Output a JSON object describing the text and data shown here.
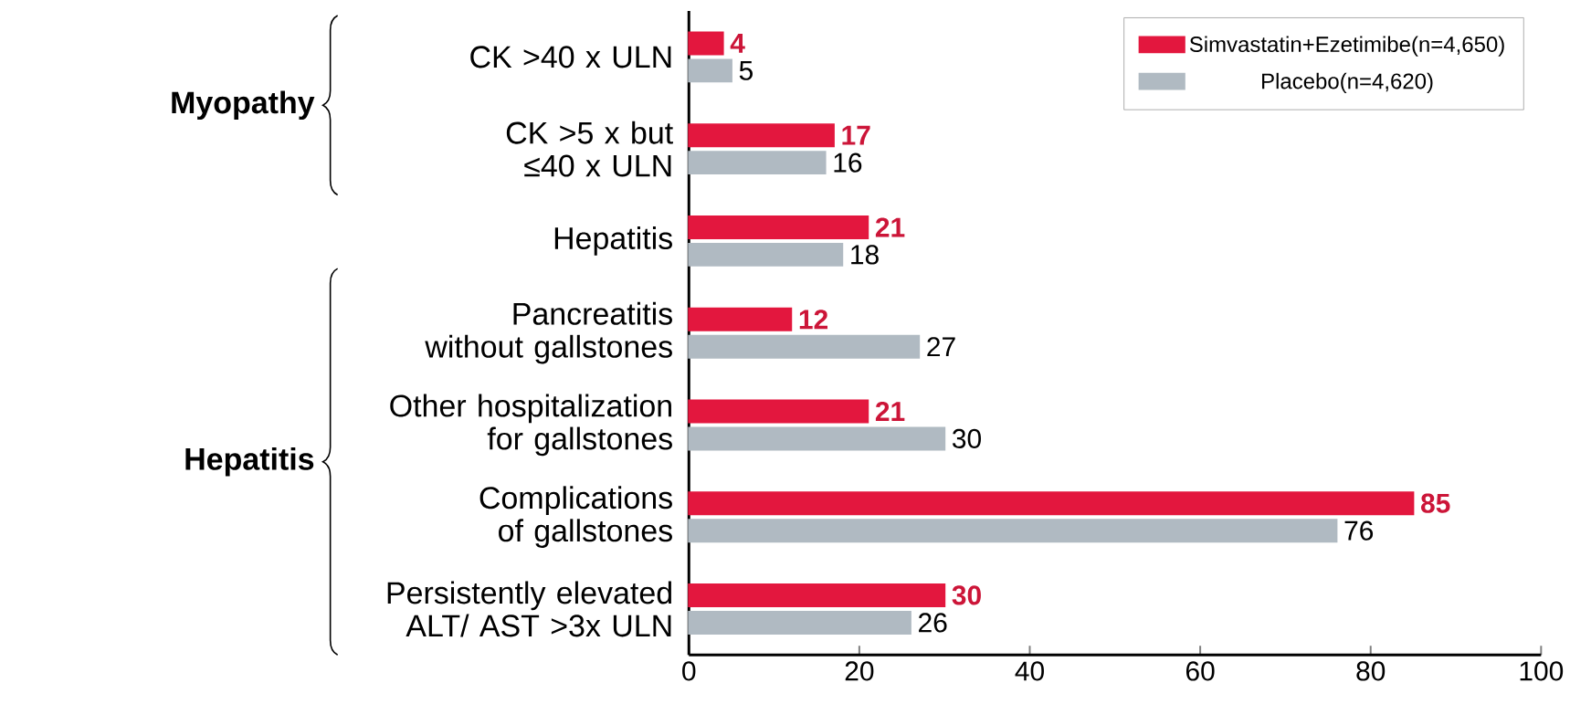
{
  "chart_data": {
    "type": "bar",
    "orientation": "horizontal",
    "categories": [
      "CK >40 x ULN",
      "CK >5 x but ≤40 x ULN",
      "Hepatitis",
      "Pancreatitis without gallstones",
      "Other hospitalization for gallstones",
      "Complications of gallstones",
      "Persistently elevated ALT/ AST >3x ULN"
    ],
    "series": [
      {
        "name": "Simvastatin+Ezetimibe(n=4,650)",
        "color": "#e3173e",
        "values": [
          4,
          17,
          21,
          12,
          21,
          85,
          30
        ]
      },
      {
        "name": "Placebo(n=4,620)",
        "color": "#b0bac2",
        "values": [
          5,
          16,
          18,
          27,
          30,
          76,
          26
        ]
      }
    ],
    "xlim": [
      0,
      100
    ],
    "xticks": [
      0,
      20,
      40,
      60,
      80,
      100
    ],
    "grid": false,
    "legend": "top right",
    "data_labels": true,
    "annotations": [
      "Myopathy",
      "Hepatitis"
    ]
  }
}
